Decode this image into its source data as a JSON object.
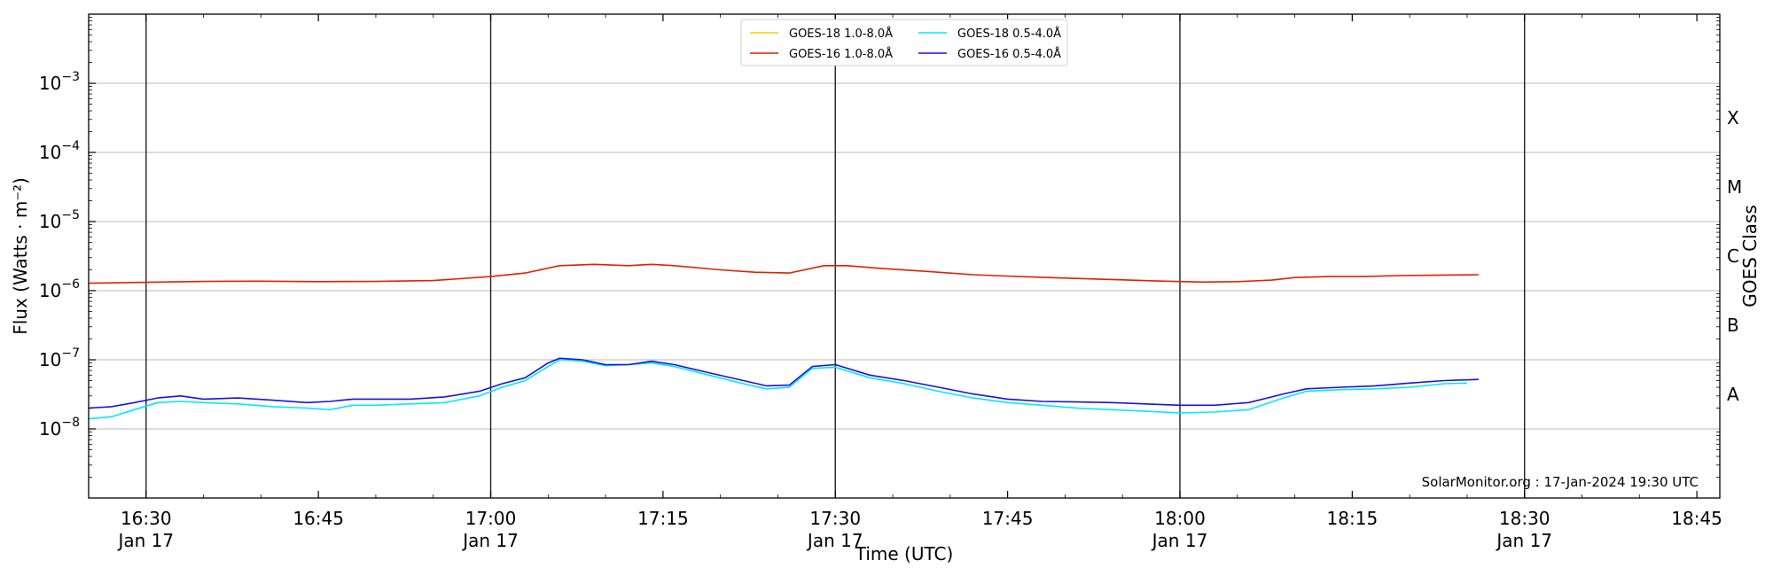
{
  "chart_data": {
    "type": "line",
    "xlabel": "Time (UTC)",
    "ylabel": "Flux (Watts · m⁻²)",
    "y2label": "GOES Class",
    "yscale": "log",
    "ylim": [
      1e-09,
      0.01
    ],
    "xlim": [
      "16:25",
      "18:47"
    ],
    "x_ticks": [
      {
        "time": "16:30",
        "label": "16:30",
        "sub": "Jan 17"
      },
      {
        "time": "16:45",
        "label": "16:45",
        "sub": ""
      },
      {
        "time": "17:00",
        "label": "17:00",
        "sub": "Jan 17"
      },
      {
        "time": "17:15",
        "label": "17:15",
        "sub": ""
      },
      {
        "time": "17:30",
        "label": "17:30",
        "sub": "Jan 17"
      },
      {
        "time": "17:45",
        "label": "17:45",
        "sub": ""
      },
      {
        "time": "18:00",
        "label": "18:00",
        "sub": "Jan 17"
      },
      {
        "time": "18:15",
        "label": "18:15",
        "sub": ""
      },
      {
        "time": "18:30",
        "label": "18:30",
        "sub": "Jan 17"
      },
      {
        "time": "18:45",
        "label": "18:45",
        "sub": ""
      }
    ],
    "y_ticks": [
      {
        "value": 1e-08,
        "exp": "−8"
      },
      {
        "value": 1e-07,
        "exp": "−7"
      },
      {
        "value": 1e-06,
        "exp": "−6"
      },
      {
        "value": 1e-05,
        "exp": "−5"
      },
      {
        "value": 0.0001,
        "exp": "−4"
      },
      {
        "value": 0.001,
        "exp": "−3"
      }
    ],
    "class_labels": [
      {
        "label": "A",
        "value": 3.16e-08
      },
      {
        "label": "B",
        "value": 3.16e-07
      },
      {
        "label": "C",
        "value": 3.16e-06
      },
      {
        "label": "M",
        "value": 3.16e-05
      },
      {
        "label": "X",
        "value": 0.000316
      }
    ],
    "vertical_lines": [
      "16:30",
      "17:00",
      "17:30",
      "18:00",
      "18:30"
    ],
    "grid": "horizontal",
    "legend_position": "top-center",
    "annotation": "SolarMonitor.org : 17-Jan-2024 19:30 UTC",
    "series": [
      {
        "name": "GOES-18 1.0-8.0Å",
        "color": "#f5d000",
        "points": []
      },
      {
        "name": "GOES-16 1.0-8.0Å",
        "color": "#e02000",
        "points": [
          [
            "16:25",
            1.28e-06
          ],
          [
            "16:30",
            1.32e-06
          ],
          [
            "16:35",
            1.36e-06
          ],
          [
            "16:40",
            1.37e-06
          ],
          [
            "16:45",
            1.35e-06
          ],
          [
            "16:50",
            1.36e-06
          ],
          [
            "16:55",
            1.4e-06
          ],
          [
            "17:00",
            1.6e-06
          ],
          [
            "17:03",
            1.8e-06
          ],
          [
            "17:06",
            2.3e-06
          ],
          [
            "17:09",
            2.4e-06
          ],
          [
            "17:12",
            2.3e-06
          ],
          [
            "17:14",
            2.4e-06
          ],
          [
            "17:16",
            2.3e-06
          ],
          [
            "17:20",
            2e-06
          ],
          [
            "17:23",
            1.85e-06
          ],
          [
            "17:26",
            1.8e-06
          ],
          [
            "17:29",
            2.3e-06
          ],
          [
            "17:31",
            2.3e-06
          ],
          [
            "17:34",
            2.1e-06
          ],
          [
            "17:38",
            1.9e-06
          ],
          [
            "17:42",
            1.7e-06
          ],
          [
            "17:46",
            1.6e-06
          ],
          [
            "17:50",
            1.52e-06
          ],
          [
            "17:54",
            1.45e-06
          ],
          [
            "17:58",
            1.38e-06
          ],
          [
            "18:02",
            1.33e-06
          ],
          [
            "18:05",
            1.35e-06
          ],
          [
            "18:08",
            1.42e-06
          ],
          [
            "18:10",
            1.55e-06
          ],
          [
            "18:13",
            1.6e-06
          ],
          [
            "18:16",
            1.6e-06
          ],
          [
            "18:19",
            1.65e-06
          ],
          [
            "18:22",
            1.67e-06
          ],
          [
            "18:26",
            1.7e-06
          ]
        ]
      },
      {
        "name": "GOES-18 0.5-4.0Å",
        "color": "#00e8ff",
        "points": [
          [
            "16:25",
            1.4e-08
          ],
          [
            "16:27",
            1.5e-08
          ],
          [
            "16:29",
            1.9e-08
          ],
          [
            "16:31",
            2.4e-08
          ],
          [
            "16:33",
            2.5e-08
          ],
          [
            "16:35",
            2.4e-08
          ],
          [
            "16:38",
            2.3e-08
          ],
          [
            "16:41",
            2.1e-08
          ],
          [
            "16:44",
            2e-08
          ],
          [
            "16:46",
            1.9e-08
          ],
          [
            "16:48",
            2.2e-08
          ],
          [
            "16:50",
            2.2e-08
          ],
          [
            "16:53",
            2.3e-08
          ],
          [
            "16:56",
            2.4e-08
          ],
          [
            "16:59",
            3e-08
          ],
          [
            "17:01",
            4e-08
          ],
          [
            "17:03",
            5e-08
          ],
          [
            "17:05",
            8e-08
          ],
          [
            "17:06",
            1e-07
          ],
          [
            "17:08",
            9.5e-08
          ],
          [
            "17:10",
            8.2e-08
          ],
          [
            "17:12",
            8.5e-08
          ],
          [
            "17:14",
            9e-08
          ],
          [
            "17:16",
            8e-08
          ],
          [
            "17:19",
            6e-08
          ],
          [
            "17:22",
            4.5e-08
          ],
          [
            "17:24",
            3.8e-08
          ],
          [
            "17:26",
            4e-08
          ],
          [
            "17:28",
            7.5e-08
          ],
          [
            "17:30",
            7.8e-08
          ],
          [
            "17:33",
            5.5e-08
          ],
          [
            "17:36",
            4.5e-08
          ],
          [
            "17:39",
            3.5e-08
          ],
          [
            "17:42",
            2.8e-08
          ],
          [
            "17:45",
            2.4e-08
          ],
          [
            "17:48",
            2.2e-08
          ],
          [
            "17:51",
            2e-08
          ],
          [
            "17:54",
            1.9e-08
          ],
          [
            "17:57",
            1.8e-08
          ],
          [
            "18:00",
            1.7e-08
          ],
          [
            "18:03",
            1.75e-08
          ],
          [
            "18:06",
            1.9e-08
          ],
          [
            "18:09",
            2.8e-08
          ],
          [
            "18:11",
            3.5e-08
          ],
          [
            "18:14",
            3.7e-08
          ],
          [
            "18:17",
            3.8e-08
          ],
          [
            "18:20",
            4e-08
          ],
          [
            "18:23",
            4.5e-08
          ],
          [
            "18:25",
            4.6e-08
          ]
        ]
      },
      {
        "name": "GOES-16 0.5-4.0Å",
        "color": "#1a10e0",
        "points": [
          [
            "16:25",
            2e-08
          ],
          [
            "16:27",
            2.1e-08
          ],
          [
            "16:29",
            2.4e-08
          ],
          [
            "16:31",
            2.8e-08
          ],
          [
            "16:33",
            3e-08
          ],
          [
            "16:35",
            2.7e-08
          ],
          [
            "16:38",
            2.8e-08
          ],
          [
            "16:41",
            2.6e-08
          ],
          [
            "16:44",
            2.4e-08
          ],
          [
            "16:46",
            2.5e-08
          ],
          [
            "16:48",
            2.7e-08
          ],
          [
            "16:50",
            2.7e-08
          ],
          [
            "16:53",
            2.7e-08
          ],
          [
            "16:56",
            2.9e-08
          ],
          [
            "16:59",
            3.5e-08
          ],
          [
            "17:01",
            4.5e-08
          ],
          [
            "17:03",
            5.5e-08
          ],
          [
            "17:05",
            9e-08
          ],
          [
            "17:06",
            1.05e-07
          ],
          [
            "17:08",
            1e-07
          ],
          [
            "17:10",
            8.5e-08
          ],
          [
            "17:12",
            8.5e-08
          ],
          [
            "17:14",
            9.5e-08
          ],
          [
            "17:16",
            8.5e-08
          ],
          [
            "17:19",
            6.5e-08
          ],
          [
            "17:22",
            5e-08
          ],
          [
            "17:24",
            4.2e-08
          ],
          [
            "17:26",
            4.3e-08
          ],
          [
            "17:28",
            8e-08
          ],
          [
            "17:30",
            8.5e-08
          ],
          [
            "17:33",
            6e-08
          ],
          [
            "17:36",
            5e-08
          ],
          [
            "17:39",
            4e-08
          ],
          [
            "17:42",
            3.2e-08
          ],
          [
            "17:45",
            2.7e-08
          ],
          [
            "17:48",
            2.5e-08
          ],
          [
            "17:51",
            2.45e-08
          ],
          [
            "17:54",
            2.4e-08
          ],
          [
            "17:57",
            2.3e-08
          ],
          [
            "18:00",
            2.2e-08
          ],
          [
            "18:03",
            2.2e-08
          ],
          [
            "18:06",
            2.4e-08
          ],
          [
            "18:09",
            3.2e-08
          ],
          [
            "18:11",
            3.8e-08
          ],
          [
            "18:14",
            4e-08
          ],
          [
            "18:17",
            4.2e-08
          ],
          [
            "18:20",
            4.6e-08
          ],
          [
            "18:23",
            5e-08
          ],
          [
            "18:26",
            5.2e-08
          ]
        ]
      }
    ]
  }
}
